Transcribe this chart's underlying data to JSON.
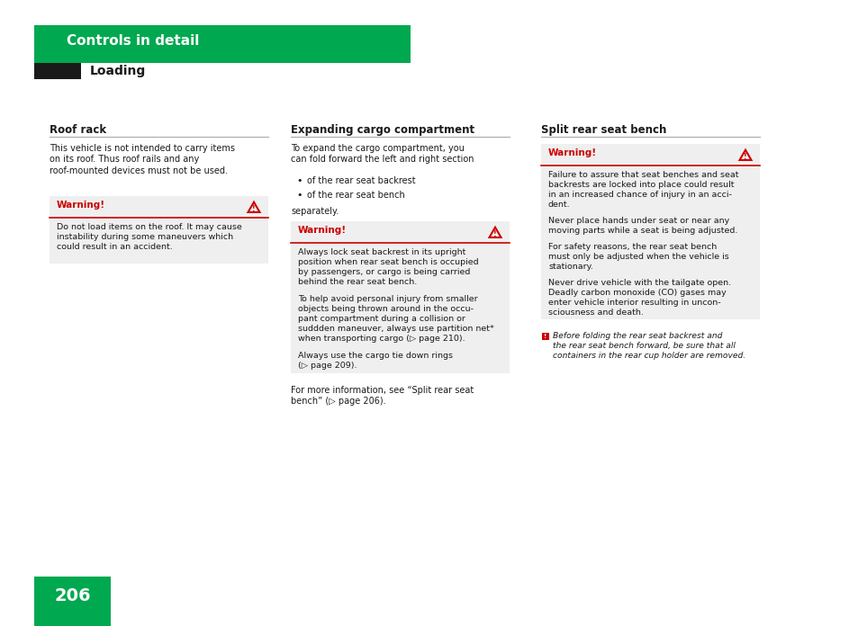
{
  "bg_color": "#ffffff",
  "green_color": "#00a850",
  "black_color": "#1a1a1a",
  "red_color": "#cc0000",
  "gray_bg": "#efefef",
  "header_title": "Controls in detail",
  "subheader": "Loading",
  "col1_heading": "Roof rack",
  "col1_body": "This vehicle is not intended to carry items\non its roof. Thus roof rails and any\nroof-mounted devices must not be used.",
  "col1_warn_title": "Warning!",
  "col1_warn_body": "Do not load items on the roof. It may cause\ninstability during some maneuvers which\ncould result in an accident.",
  "col2_heading": "Expanding cargo compartment",
  "col2_body": "To expand the cargo compartment, you\ncan fold forward the left and right section",
  "col2_bullets": [
    "of the rear seat backrest",
    "of the rear seat bench"
  ],
  "col2_separately": "separately.",
  "col2_warn_title": "Warning!",
  "col2_warn_body1": "Always lock seat backrest in its upright\nposition when rear seat bench is occupied\nby passengers, or cargo is being carried\nbehind the rear seat bench.",
  "col2_warn_body2": "To help avoid personal injury from smaller\nobjects being thrown around in the occu-\npant compartment during a collision or\nsuddden maneuver, always use partition net*\nwhen transporting cargo (▷ page 210).",
  "col2_warn_body3": "Always use the cargo tie down rings\n(▷ page 209).",
  "col2_footer": "For more information, see “Split rear seat\nbench” (▷ page 206).",
  "col3_heading": "Split rear seat bench",
  "col3_warn_title": "Warning!",
  "col3_warn_body1": "Failure to assure that seat benches and seat\nbackrests are locked into place could result\nin an increased chance of injury in an acci-\ndent.",
  "col3_warn_body2": "Never place hands under seat or near any\nmoving parts while a seat is being adjusted.",
  "col3_warn_body3": "For safety reasons, the rear seat bench\nmust only be adjusted when the vehicle is\nstationary.",
  "col3_warn_body4": "Never drive vehicle with the tailgate open.\nDeadly carbon monoxide (CO) gases may\nenter vehicle interior resulting in uncon-\nsciousness and death.",
  "col3_note": "Before folding the rear seat backrest and\nthe rear seat bench forward, be sure that all\ncontainers in the rear cup holder are removed.",
  "page_number": "206",
  "fig_w": 9.54,
  "fig_h": 7.16,
  "dpi": 100
}
